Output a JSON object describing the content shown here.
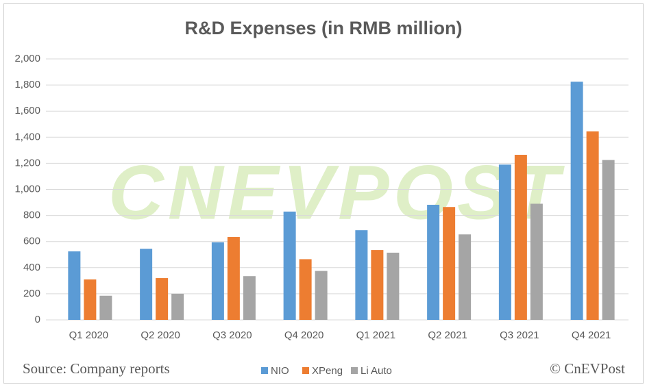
{
  "chart_data": {
    "type": "bar",
    "title": "R&D Expenses (in RMB million)",
    "watermark": "CNEVPOST",
    "source": "Source: Company reports",
    "credit": "© CnEVPost",
    "categories": [
      "Q1 2020",
      "Q2 2020",
      "Q3 2020",
      "Q4 2020",
      "Q1 2021",
      "Q2 2021",
      "Q3 2021",
      "Q4 2021"
    ],
    "series": [
      {
        "name": "NIO",
        "color": "#5b9bd5",
        "values": [
          525,
          545,
          595,
          830,
          687,
          882,
          1190,
          1825
        ]
      },
      {
        "name": "XPeng",
        "color": "#ed7d31",
        "values": [
          310,
          320,
          635,
          465,
          535,
          865,
          1265,
          1445
        ]
      },
      {
        "name": "Li Auto",
        "color": "#a5a5a5",
        "values": [
          185,
          200,
          335,
          375,
          515,
          655,
          890,
          1225
        ]
      }
    ],
    "ylim": [
      0,
      2000
    ],
    "yticks": [
      0,
      200,
      400,
      600,
      800,
      {
        "value": 1000,
        "label": "1,000"
      },
      {
        "value": 1200,
        "label": "1,200"
      },
      {
        "value": 1400,
        "label": "1,400"
      },
      {
        "value": 1600,
        "label": "1,600"
      },
      {
        "value": 1800,
        "label": "1,800"
      },
      {
        "value": 2000,
        "label": "2,000"
      }
    ],
    "grid": true,
    "legend": "bottom"
  }
}
